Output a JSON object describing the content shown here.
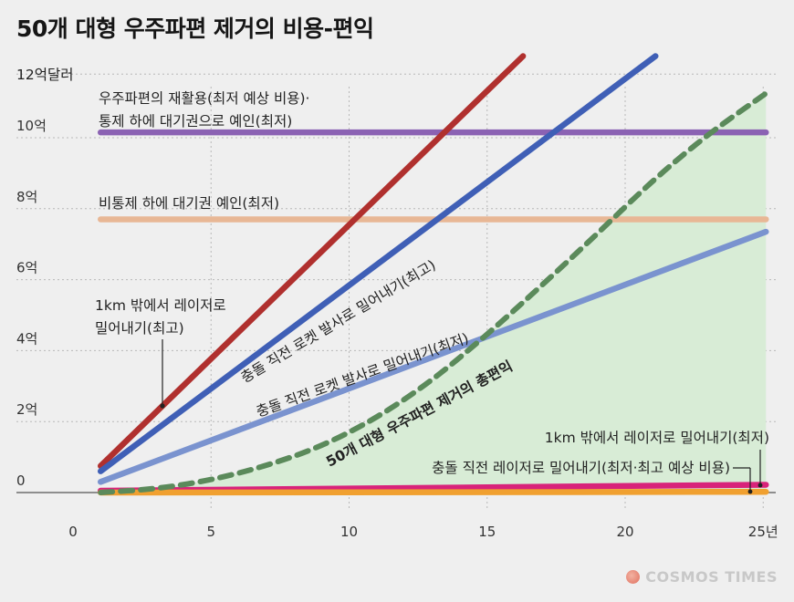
{
  "chart_data": {
    "type": "line",
    "title": "50개 대형 우주파편 제거의 비용-편익",
    "ylabel": "12억달러",
    "xlim": [
      0,
      25
    ],
    "ylim": [
      0,
      12
    ],
    "xticks": [
      {
        "v": 0,
        "label": "0"
      },
      {
        "v": 5,
        "label": "5"
      },
      {
        "v": 10,
        "label": "10"
      },
      {
        "v": 15,
        "label": "15"
      },
      {
        "v": 20,
        "label": "20"
      },
      {
        "v": 25,
        "label": "25년"
      }
    ],
    "yticks": [
      {
        "v": 0,
        "label": "0"
      },
      {
        "v": 2,
        "label": "2억"
      },
      {
        "v": 4,
        "label": "4억"
      },
      {
        "v": 6,
        "label": "6억"
      },
      {
        "v": 8,
        "label": "8억"
      },
      {
        "v": 10,
        "label": "10억"
      }
    ],
    "grid": true,
    "series": [
      {
        "name": "우주파편의 재활용(최저 예상 비용)·통제 하에 대기권으로 예인(최저)",
        "color": "#8b62b3",
        "x": [
          1,
          25.1
        ],
        "y": [
          10.15,
          10.15
        ]
      },
      {
        "name": "비통제 하에 대기권 예인(최저)",
        "color": "#e8b795",
        "x": [
          1,
          25.1
        ],
        "y": [
          7.7,
          7.7
        ]
      },
      {
        "name": "1km 밖에서 레이저로 밀어내기(최고)",
        "color": "#b0302e",
        "x": [
          1,
          16.3
        ],
        "y": [
          0.75,
          12.3
        ]
      },
      {
        "name": "충돌 직전 로켓 발사로 밀어내기(최고)",
        "color": "#3f5fb6",
        "x": [
          1,
          21.1
        ],
        "y": [
          0.6,
          12.3
        ]
      },
      {
        "name": "충돌 직전 로켓 발사로 밀어내기(최저)",
        "color": "#7a93cf",
        "x": [
          1,
          25.1
        ],
        "y": [
          0.3,
          7.35
        ]
      },
      {
        "name": "1km 밖에서 레이저로 밀어내기(최저)",
        "color": "#d8237a",
        "x": [
          1,
          25.1
        ],
        "y": [
          0.05,
          0.22
        ]
      },
      {
        "name": "충돌 직전 레이저로 밀어내기(최저·최고 예상 비용)",
        "color": "#f0a030",
        "x": [
          1,
          25.1
        ],
        "y": [
          0.0,
          0.02
        ]
      },
      {
        "name": "50개 대형 우주파편 제거의 총편익",
        "color": "#5b8a5b",
        "type": "area-dashed",
        "x": [
          1,
          3,
          5,
          7,
          9,
          11,
          13,
          15,
          17,
          19,
          21,
          23,
          25.1
        ],
        "y": [
          0.0,
          0.1,
          0.35,
          0.75,
          1.3,
          2.1,
          3.15,
          4.45,
          5.85,
          7.3,
          8.8,
          10.1,
          11.25
        ]
      }
    ],
    "labels": {
      "recycle_line1": "우주파편의 재활용(최저 예상 비용)·",
      "recycle_line2": "통제 하에 대기권으로 예인(최저)",
      "uncontrolled": "비통제 하에 대기권 예인(최저)",
      "laser1km_high_line1": "1km 밖에서 레이저로",
      "laser1km_high_line2": "밀어내기(최고)",
      "rocket_high": "충돌 직전 로켓 발사로 밀어내기(최고)",
      "rocket_low": "충돌 직전 로켓 발사로 밀어내기(최저)",
      "benefit": "50개 대형 우주파편 제거의 총편익",
      "laser1km_low": "1km 밖에서 레이저로 밀어내기(최저)",
      "laser_collision": "충돌 직전 레이저로 밀어내기(최저·최고 예상 비용)"
    }
  },
  "logo": {
    "text": "COSMOS TIMES"
  }
}
